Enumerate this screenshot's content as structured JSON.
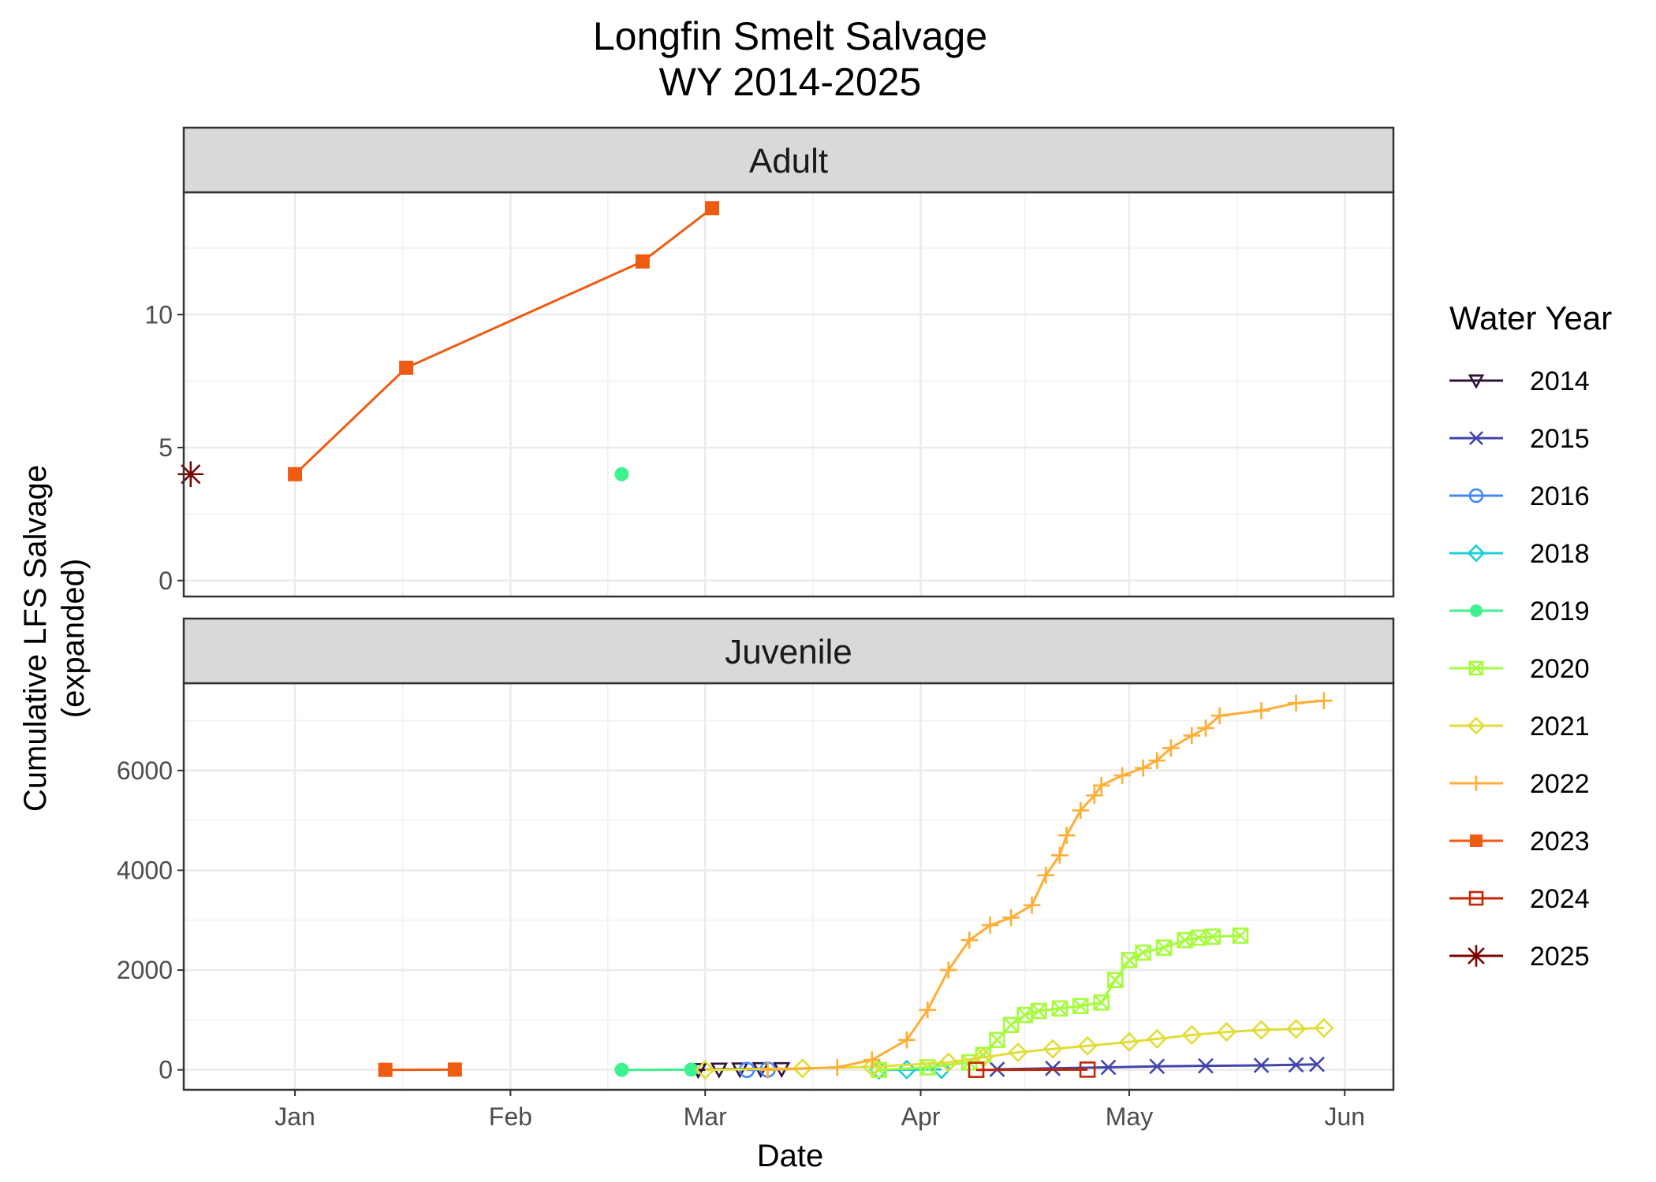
{
  "chart_data": {
    "type": "line",
    "title": [
      "Longfin Smelt Salvage",
      "WY 2014-2025"
    ],
    "xlabel": "Date",
    "ylabel": [
      "Cumulative LFS Salvage",
      "(expanded)"
    ],
    "x_ticks": [
      "Jan",
      "Feb",
      "Mar",
      "Apr",
      "May",
      "Jun"
    ],
    "x_tick_dates": [
      "01-01",
      "02-01",
      "03-01",
      "04-01",
      "05-01",
      "06-01"
    ],
    "xlim": [
      "12-16",
      "06-08"
    ],
    "grid": true,
    "legend": {
      "title": "Water Year",
      "position": "right"
    },
    "panels": [
      {
        "name": "Adult",
        "ylim": [
          -0.6,
          14.6
        ],
        "y_ticks": [
          0,
          5,
          10
        ],
        "series": [
          {
            "name": "2023",
            "x": [
              "01-01",
              "01-17",
              "02-20",
              "03-02"
            ],
            "y": [
              4,
              8,
              12,
              14
            ]
          },
          {
            "name": "2019",
            "x": [
              "02-17"
            ],
            "y": [
              4
            ]
          },
          {
            "name": "2025",
            "x": [
              "12-17"
            ],
            "y": [
              4
            ]
          }
        ]
      },
      {
        "name": "Juvenile",
        "ylim": [
          -400,
          7750
        ],
        "y_ticks": [
          0,
          2000,
          4000,
          6000
        ],
        "series": [
          {
            "name": "2014",
            "x": [
              "02-28",
              "03-03",
              "03-06",
              "03-09",
              "03-12"
            ],
            "y": [
              0,
              10,
              15,
              20,
              20
            ]
          },
          {
            "name": "2015",
            "x": [
              "04-12",
              "04-20",
              "04-28",
              "05-05",
              "05-12",
              "05-20",
              "05-25",
              "05-28"
            ],
            "y": [
              10,
              30,
              50,
              70,
              80,
              90,
              100,
              110
            ]
          },
          {
            "name": "2016",
            "x": [
              "03-07",
              "03-10"
            ],
            "y": [
              0,
              5
            ]
          },
          {
            "name": "2018",
            "x": [
              "03-26",
              "03-30",
              "04-04"
            ],
            "y": [
              0,
              5,
              10
            ]
          },
          {
            "name": "2019",
            "x": [
              "02-17",
              "02-27"
            ],
            "y": [
              0,
              5
            ]
          },
          {
            "name": "2020",
            "x": [
              "03-26",
              "04-02",
              "04-08",
              "04-10",
              "04-12",
              "04-14",
              "04-16",
              "04-18",
              "04-21",
              "04-24",
              "04-27",
              "04-29",
              "05-01",
              "05-03",
              "05-06",
              "05-09",
              "05-11",
              "05-13",
              "05-17"
            ],
            "y": [
              0,
              50,
              150,
              300,
              600,
              900,
              1100,
              1180,
              1230,
              1280,
              1350,
              1800,
              2200,
              2350,
              2450,
              2600,
              2650,
              2670,
              2690
            ]
          },
          {
            "name": "2021",
            "x": [
              "03-01",
              "03-15",
              "03-25",
              "04-05",
              "04-10",
              "04-15",
              "04-20",
              "04-25",
              "05-01",
              "05-05",
              "05-10",
              "05-15",
              "05-20",
              "05-25",
              "05-29"
            ],
            "y": [
              0,
              30,
              60,
              150,
              250,
              350,
              420,
              480,
              560,
              620,
              700,
              760,
              800,
              820,
              840
            ]
          },
          {
            "name": "2022",
            "x": [
              "03-10",
              "03-20",
              "03-25",
              "03-30",
              "04-02",
              "04-05",
              "04-08",
              "04-11",
              "04-14",
              "04-17",
              "04-19",
              "04-21",
              "04-22",
              "04-24",
              "04-26",
              "04-27",
              "04-30",
              "05-03",
              "05-05",
              "05-07",
              "05-10",
              "05-12",
              "05-14",
              "05-20",
              "05-25",
              "05-29"
            ],
            "y": [
              0,
              50,
              200,
              600,
              1200,
              2000,
              2600,
              2900,
              3050,
              3300,
              3900,
              4300,
              4700,
              5200,
              5500,
              5700,
              5900,
              6050,
              6200,
              6450,
              6700,
              6850,
              7100,
              7200,
              7350,
              7400
            ]
          },
          {
            "name": "2023",
            "x": [
              "01-14",
              "01-24"
            ],
            "y": [
              0,
              5
            ]
          },
          {
            "name": "2024",
            "x": [
              "04-09",
              "04-25"
            ],
            "y": [
              0,
              5
            ]
          }
        ]
      }
    ],
    "legend_entries": [
      {
        "name": "2014",
        "color": "#30123b",
        "shape": "triangle-down-open"
      },
      {
        "name": "2015",
        "color": "#4145ab",
        "shape": "x"
      },
      {
        "name": "2016",
        "color": "#4686fb",
        "shape": "circle-open"
      },
      {
        "name": "2018",
        "color": "#1bcfd4",
        "shape": "diamond-open"
      },
      {
        "name": "2019",
        "color": "#3ef38f",
        "shape": "circle"
      },
      {
        "name": "2020",
        "color": "#a4fc3c",
        "shape": "square-x"
      },
      {
        "name": "2021",
        "color": "#e1dd37",
        "shape": "diamond-open"
      },
      {
        "name": "2022",
        "color": "#feae35",
        "shape": "plus"
      },
      {
        "name": "2023",
        "color": "#f05b12",
        "shape": "square"
      },
      {
        "name": "2024",
        "color": "#c42503",
        "shape": "square-open"
      },
      {
        "name": "2025",
        "color": "#7a0403",
        "shape": "asterisk"
      }
    ]
  }
}
